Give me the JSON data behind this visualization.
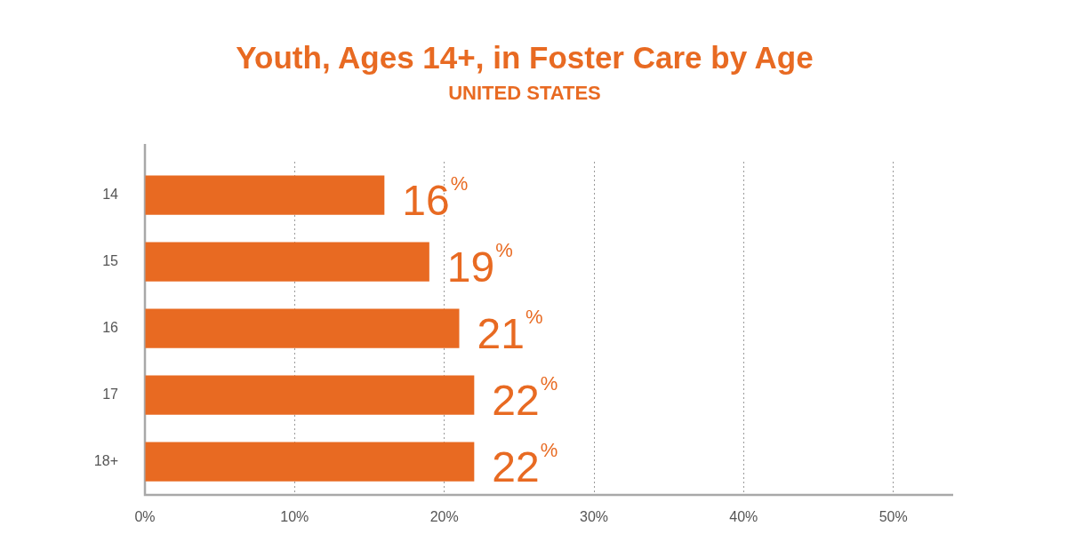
{
  "chart_data": {
    "type": "bar",
    "orientation": "horizontal",
    "title": "Youth, Ages 14+, in Foster Care by Age",
    "subtitle": "UNITED STATES",
    "categories": [
      "14",
      "15",
      "16",
      "17",
      "18+"
    ],
    "values": [
      16,
      19,
      21,
      22,
      22
    ],
    "value_labels": [
      "16%",
      "19%",
      "21%",
      "22%",
      "22%"
    ],
    "color": "#e86a22",
    "xlim": [
      0,
      54
    ],
    "xticks": [
      {
        "value": 0,
        "label": "0%"
      },
      {
        "value": 10,
        "label": "10%"
      },
      {
        "value": 20,
        "label": "20%"
      },
      {
        "value": 30,
        "label": "30%"
      },
      {
        "value": 40,
        "label": "40%"
      },
      {
        "value": 50,
        "label": "50%"
      }
    ],
    "grid": "x"
  }
}
